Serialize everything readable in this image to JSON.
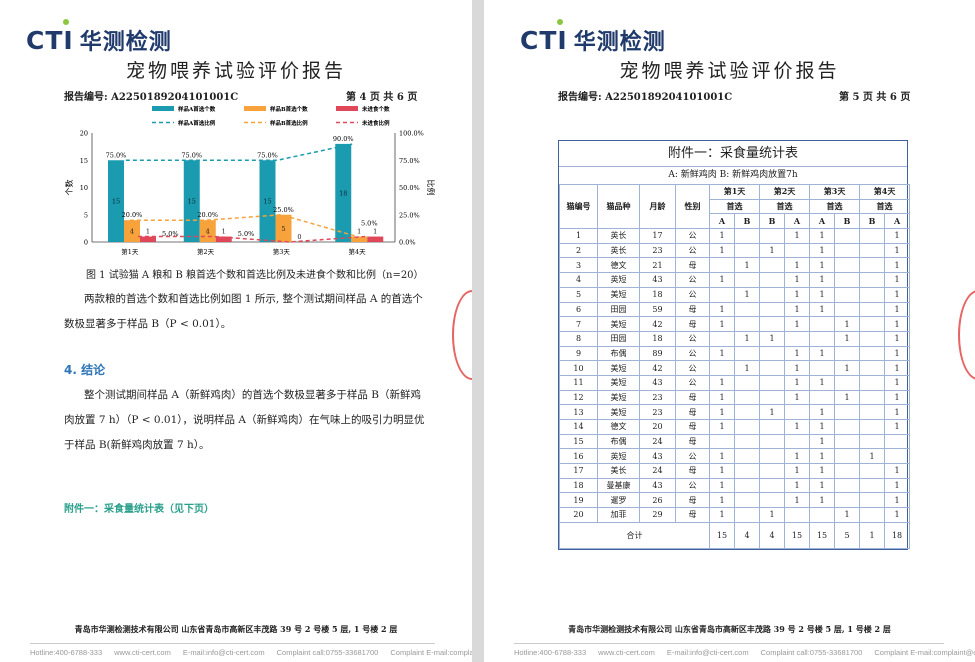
{
  "brand": {
    "logo": "CTI",
    "name": "华测检测"
  },
  "page1": {
    "title": "宠物喂养试验评价报告",
    "report_no": "报告编号: A2250189204101001C",
    "page_no": "第 4 页 共 6 页",
    "caption": "图 1  试验猫 A 粮和 B 粮首选个数和首选比例及未进食个数和比例（n=20）",
    "para1": "两款粮的首选个数和首选比例如图 1 所示, 整个测试期间样品 A 的首选个数极显著多于样品 B（P < 0.01）。",
    "heading": "4.  结论",
    "para2": "整个测试期间样品 A（新鲜鸡肉）的首选个数极显著多于样品 B（新鲜鸡肉放置 7 h）（P < 0.01），说明样品 A（新鲜鸡肉）在气味上的吸引力明显优于样品 B(新鲜鸡肉放置 7 h）。",
    "appendix": "附件一：采食量统计表（见下页）"
  },
  "chart_data": {
    "type": "bar",
    "categories": [
      "第1天",
      "第2天",
      "第3天",
      "第4天"
    ],
    "ylabel": "个数",
    "y2label": "比例",
    "ylim": [
      0,
      20
    ],
    "y2lim": [
      0,
      100
    ],
    "yticks": [
      "0",
      "5",
      "10",
      "15",
      "20"
    ],
    "y2ticks": [
      "0.0%",
      "25.0%",
      "50.0%",
      "75.0%",
      "100.0%"
    ],
    "series": [
      {
        "name": "样品A首选个数",
        "kind": "bar",
        "values": [
          15,
          15,
          15,
          18
        ],
        "color": "#1a9bb0"
      },
      {
        "name": "样品B首选个数",
        "kind": "bar",
        "values": [
          4,
          4,
          5,
          1
        ],
        "color": "#f7a23b"
      },
      {
        "name": "未进食个数",
        "kind": "bar",
        "values": [
          1,
          1,
          0,
          1
        ],
        "color": "#e0485a"
      },
      {
        "name": "样品A首选比例",
        "kind": "line",
        "values": [
          75,
          75,
          75,
          90
        ],
        "labels": [
          "75.0%",
          "75.0%",
          "75.0%",
          "90.0%"
        ],
        "color": "#1a9bb0"
      },
      {
        "name": "样品B首选比例",
        "kind": "line",
        "values": [
          20,
          20,
          25,
          5
        ],
        "labels": [
          "20.0%",
          "20.0%",
          "25.0%",
          "5.0%"
        ],
        "color": "#f7a23b"
      },
      {
        "name": "未进食比例",
        "kind": "line",
        "values": [
          5,
          5,
          0,
          5
        ],
        "labels": [
          "5.0%",
          "5.0%",
          "",
          ""
        ],
        "color": "#e0485a"
      }
    ]
  },
  "page2": {
    "title": "宠物喂养试验评价报告",
    "report_no": "报告编号: A2250189204101001C",
    "page_no": "第 5 页 共 6 页",
    "table": {
      "title": "附件一：采食量统计表",
      "legend": "A: 新鲜鸡肉    B: 新鲜鸡肉放置7h",
      "headers": [
        "猫编号",
        "猫品种",
        "月龄",
        "性别"
      ],
      "days": [
        "第1天",
        "第2天",
        "第3天",
        "第4天"
      ],
      "pref": "首选",
      "sub": [
        "A",
        "B",
        "B",
        "A",
        "A",
        "B",
        "B",
        "A"
      ],
      "rows": [
        [
          "1",
          "英长",
          "17",
          "公",
          "1",
          "",
          "",
          "1",
          "1",
          "",
          "",
          "1"
        ],
        [
          "2",
          "英长",
          "23",
          "公",
          "1",
          "",
          "1",
          "",
          "1",
          "",
          "",
          "1"
        ],
        [
          "3",
          "德文",
          "21",
          "母",
          "",
          "1",
          "",
          "1",
          "1",
          "",
          "",
          "1"
        ],
        [
          "4",
          "英短",
          "43",
          "公",
          "1",
          "",
          "",
          "1",
          "1",
          "",
          "",
          "1"
        ],
        [
          "5",
          "美短",
          "18",
          "公",
          "",
          "1",
          "",
          "1",
          "1",
          "",
          "",
          "1"
        ],
        [
          "6",
          "田园",
          "59",
          "母",
          "1",
          "",
          "",
          "1",
          "1",
          "",
          "",
          "1"
        ],
        [
          "7",
          "美短",
          "42",
          "母",
          "1",
          "",
          "",
          "1",
          "",
          "1",
          "",
          "1"
        ],
        [
          "8",
          "田园",
          "18",
          "公",
          "",
          "1",
          "1",
          "",
          "",
          "1",
          "",
          "1"
        ],
        [
          "9",
          "布偶",
          "89",
          "公",
          "1",
          "",
          "",
          "1",
          "1",
          "",
          "",
          "1"
        ],
        [
          "10",
          "美短",
          "42",
          "公",
          "",
          "1",
          "",
          "1",
          "",
          "1",
          "",
          "1"
        ],
        [
          "11",
          "美短",
          "43",
          "公",
          "1",
          "",
          "",
          "1",
          "1",
          "",
          "",
          "1"
        ],
        [
          "12",
          "美短",
          "23",
          "母",
          "1",
          "",
          "",
          "1",
          "",
          "1",
          "",
          "1"
        ],
        [
          "13",
          "美短",
          "23",
          "母",
          "1",
          "",
          "1",
          "",
          "1",
          "",
          "",
          "1"
        ],
        [
          "14",
          "德文",
          "20",
          "母",
          "1",
          "",
          "",
          "1",
          "1",
          "",
          "",
          "1"
        ],
        [
          "15",
          "布偶",
          "24",
          "母",
          "",
          "",
          "",
          "",
          "1",
          "",
          "",
          ""
        ],
        [
          "16",
          "英短",
          "43",
          "公",
          "1",
          "",
          "",
          "1",
          "1",
          "",
          "1",
          ""
        ],
        [
          "17",
          "美长",
          "24",
          "母",
          "1",
          "",
          "",
          "1",
          "1",
          "",
          "",
          "1"
        ],
        [
          "18",
          "曼基康",
          "43",
          "公",
          "1",
          "",
          "",
          "1",
          "1",
          "",
          "",
          "1"
        ],
        [
          "19",
          "暹罗",
          "26",
          "母",
          "1",
          "",
          "",
          "1",
          "1",
          "",
          "",
          "1"
        ],
        [
          "20",
          "加菲",
          "29",
          "母",
          "1",
          "",
          "1",
          "",
          "",
          "1",
          "",
          "1"
        ]
      ],
      "total_label": "合计",
      "totals": [
        "15",
        "4",
        "4",
        "15",
        "15",
        "5",
        "1",
        "18"
      ]
    }
  },
  "footer": {
    "company": "青岛市华测检测技术有限公司  山东省青岛市高新区丰茂路 39 号 2 号楼 5 层, 1 号楼 2 层",
    "hotline": "Hotline:400-6788-333",
    "web": "www.cti-cert.com",
    "email": "E-mail:info@cti-cert.com",
    "complaint_call": "Complaint call:0755-33681700",
    "complaint_email": "Complaint E-mail:complaint@cti-cert.com"
  }
}
